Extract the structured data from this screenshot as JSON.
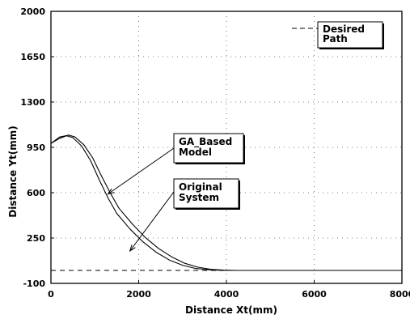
{
  "chart_data": {
    "type": "line",
    "title": "",
    "xlabel": "Distance Xt(mm)",
    "ylabel": "Distance Yt(mm)",
    "xlim": [
      0,
      8000
    ],
    "ylim": [
      -100,
      2000
    ],
    "xticks": [
      0,
      2000,
      4000,
      6000,
      8000
    ],
    "yticks": [
      -100,
      250,
      600,
      950,
      1300,
      1650,
      2000
    ],
    "xtick_labels": [
      "0",
      "2000",
      "4000",
      "6000",
      "8000"
    ],
    "ytick_labels": [
      "-100",
      "250",
      "600",
      "950",
      "1300",
      "1650",
      "2000"
    ],
    "grid": "dotted",
    "series": [
      {
        "name": "GA_Based Model",
        "style": "solid",
        "x": [
          0,
          200,
          350,
          500,
          700,
          900,
          1100,
          1300,
          1500,
          1800,
          2100,
          2400,
          2700,
          3000,
          3300,
          3600,
          3900,
          4200,
          5000,
          6000,
          7000,
          8000
        ],
        "y": [
          980,
          1030,
          1040,
          1025,
          960,
          850,
          700,
          560,
          440,
          320,
          220,
          140,
          80,
          40,
          15,
          5,
          0,
          0,
          0,
          0,
          0,
          0
        ]
      },
      {
        "name": "Original System",
        "style": "solid",
        "x": [
          0,
          200,
          400,
          550,
          750,
          950,
          1150,
          1350,
          1550,
          1850,
          2150,
          2450,
          2750,
          3050,
          3350,
          3650,
          3950,
          4250,
          5000,
          6000,
          7000,
          8000
        ],
        "y": [
          980,
          1020,
          1045,
          1030,
          970,
          870,
          730,
          600,
          480,
          360,
          255,
          170,
          105,
          55,
          25,
          8,
          2,
          0,
          0,
          0,
          0,
          0
        ]
      },
      {
        "name": "Desired Path",
        "style": "dashed",
        "x": [
          0,
          8000
        ],
        "y": [
          0,
          0
        ]
      }
    ],
    "annotations": [
      {
        "text": "GA_Based Model",
        "lines": [
          "GA_Based",
          "Model"
        ],
        "arrow_to": [
          1300,
          590
        ],
        "arrow_from": [
          2000,
          1090
        ]
      },
      {
        "text": "Original System",
        "lines": [
          "Original",
          "System"
        ],
        "arrow_to": [
          1800,
          150
        ],
        "arrow_from": [
          2800,
          700
        ]
      }
    ],
    "legend": {
      "entries": [
        {
          "label": "Desired Path",
          "lines": [
            "Desired",
            "Path"
          ],
          "style": "dashed"
        }
      ],
      "placement": "top-right"
    }
  }
}
